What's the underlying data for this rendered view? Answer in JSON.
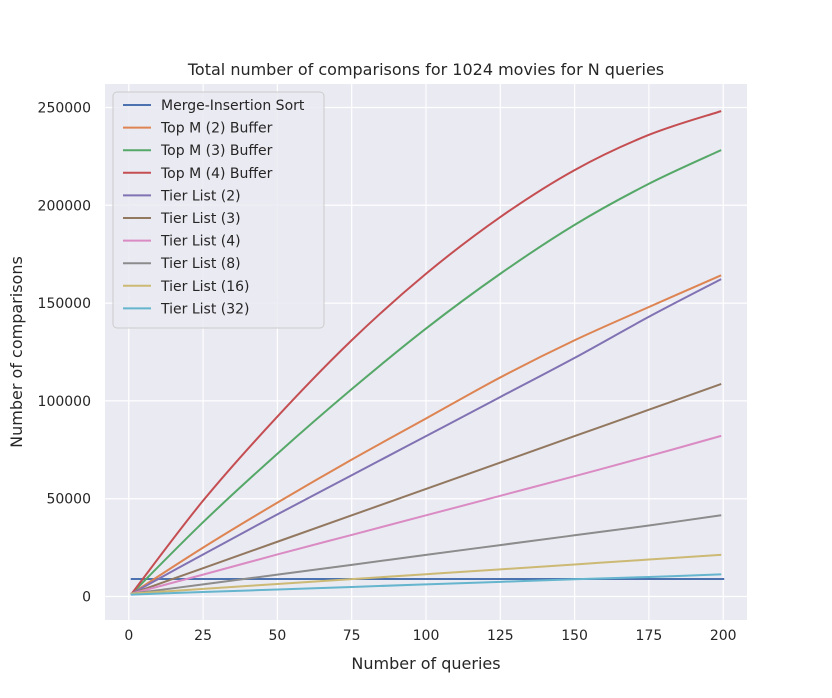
{
  "chart_data": {
    "type": "line",
    "title": "Total number of comparisons for 1024 movies for N queries",
    "xlabel": "Number of queries",
    "ylabel": "Number of comparisons",
    "xlim": [
      -8,
      208
    ],
    "ylim": [
      -12000,
      262000
    ],
    "xticks": [
      0,
      25,
      50,
      75,
      100,
      125,
      150,
      175,
      200
    ],
    "yticks": [
      0,
      50000,
      100000,
      150000,
      200000,
      250000
    ],
    "grid": true,
    "legend_position": "top-left",
    "background": "#eaeaf2",
    "series": [
      {
        "name": "Merge-Insertion Sort",
        "color": "#4c72b0",
        "x": [
          1,
          200
        ],
        "y": [
          8967,
          8967
        ]
      },
      {
        "name": "Top M (2) Buffer",
        "color": "#dd8452",
        "x": [
          1,
          25,
          50,
          75,
          100,
          125,
          150,
          175,
          199
        ],
        "y": [
          1500,
          25000,
          48000,
          70000,
          91000,
          112000,
          131000,
          148000,
          164000
        ]
      },
      {
        "name": "Top M (3) Buffer",
        "color": "#55a868",
        "x": [
          1,
          25,
          50,
          75,
          100,
          125,
          150,
          175,
          199
        ],
        "y": [
          1500,
          38000,
          73000,
          106000,
          137000,
          165000,
          190000,
          211000,
          228000
        ]
      },
      {
        "name": "Top M (4) Buffer",
        "color": "#c44e52",
        "x": [
          1,
          25,
          50,
          75,
          100,
          125,
          150,
          175,
          199
        ],
        "y": [
          1500,
          49000,
          92000,
          131000,
          165000,
          194000,
          218000,
          236000,
          248000
        ]
      },
      {
        "name": "Tier List (2)",
        "color": "#8172b3",
        "x": [
          1,
          25,
          50,
          75,
          100,
          125,
          150,
          175,
          199
        ],
        "y": [
          1500,
          21500,
          42000,
          62000,
          82000,
          102000,
          122000,
          143000,
          162000
        ]
      },
      {
        "name": "Tier List (3)",
        "color": "#937860",
        "x": [
          1,
          25,
          50,
          75,
          100,
          125,
          150,
          175,
          199
        ],
        "y": [
          1500,
          14500,
          28000,
          41500,
          55000,
          68500,
          82000,
          95500,
          108500
        ]
      },
      {
        "name": "Tier List (4)",
        "color": "#da8bc3",
        "x": [
          1,
          25,
          50,
          75,
          100,
          125,
          150,
          175,
          199
        ],
        "y": [
          1500,
          11200,
          21500,
          31500,
          41500,
          51500,
          61500,
          71800,
          82000
        ]
      },
      {
        "name": "Tier List (8)",
        "color": "#8c8c8c",
        "x": [
          1,
          25,
          50,
          75,
          100,
          125,
          150,
          175,
          199
        ],
        "y": [
          1500,
          6200,
          11200,
          16200,
          21300,
          26300,
          31300,
          36300,
          41500
        ]
      },
      {
        "name": "Tier List (16)",
        "color": "#ccb974",
        "x": [
          1,
          25,
          50,
          75,
          100,
          125,
          150,
          175,
          199
        ],
        "y": [
          1500,
          3900,
          6400,
          8900,
          11400,
          13900,
          16400,
          18900,
          21300
        ]
      },
      {
        "name": "Tier List (32)",
        "color": "#64b5cd",
        "x": [
          1,
          25,
          50,
          75,
          100,
          125,
          150,
          175,
          199
        ],
        "y": [
          1000,
          2300,
          3600,
          4900,
          6200,
          7500,
          8800,
          10000,
          11300
        ]
      }
    ]
  }
}
